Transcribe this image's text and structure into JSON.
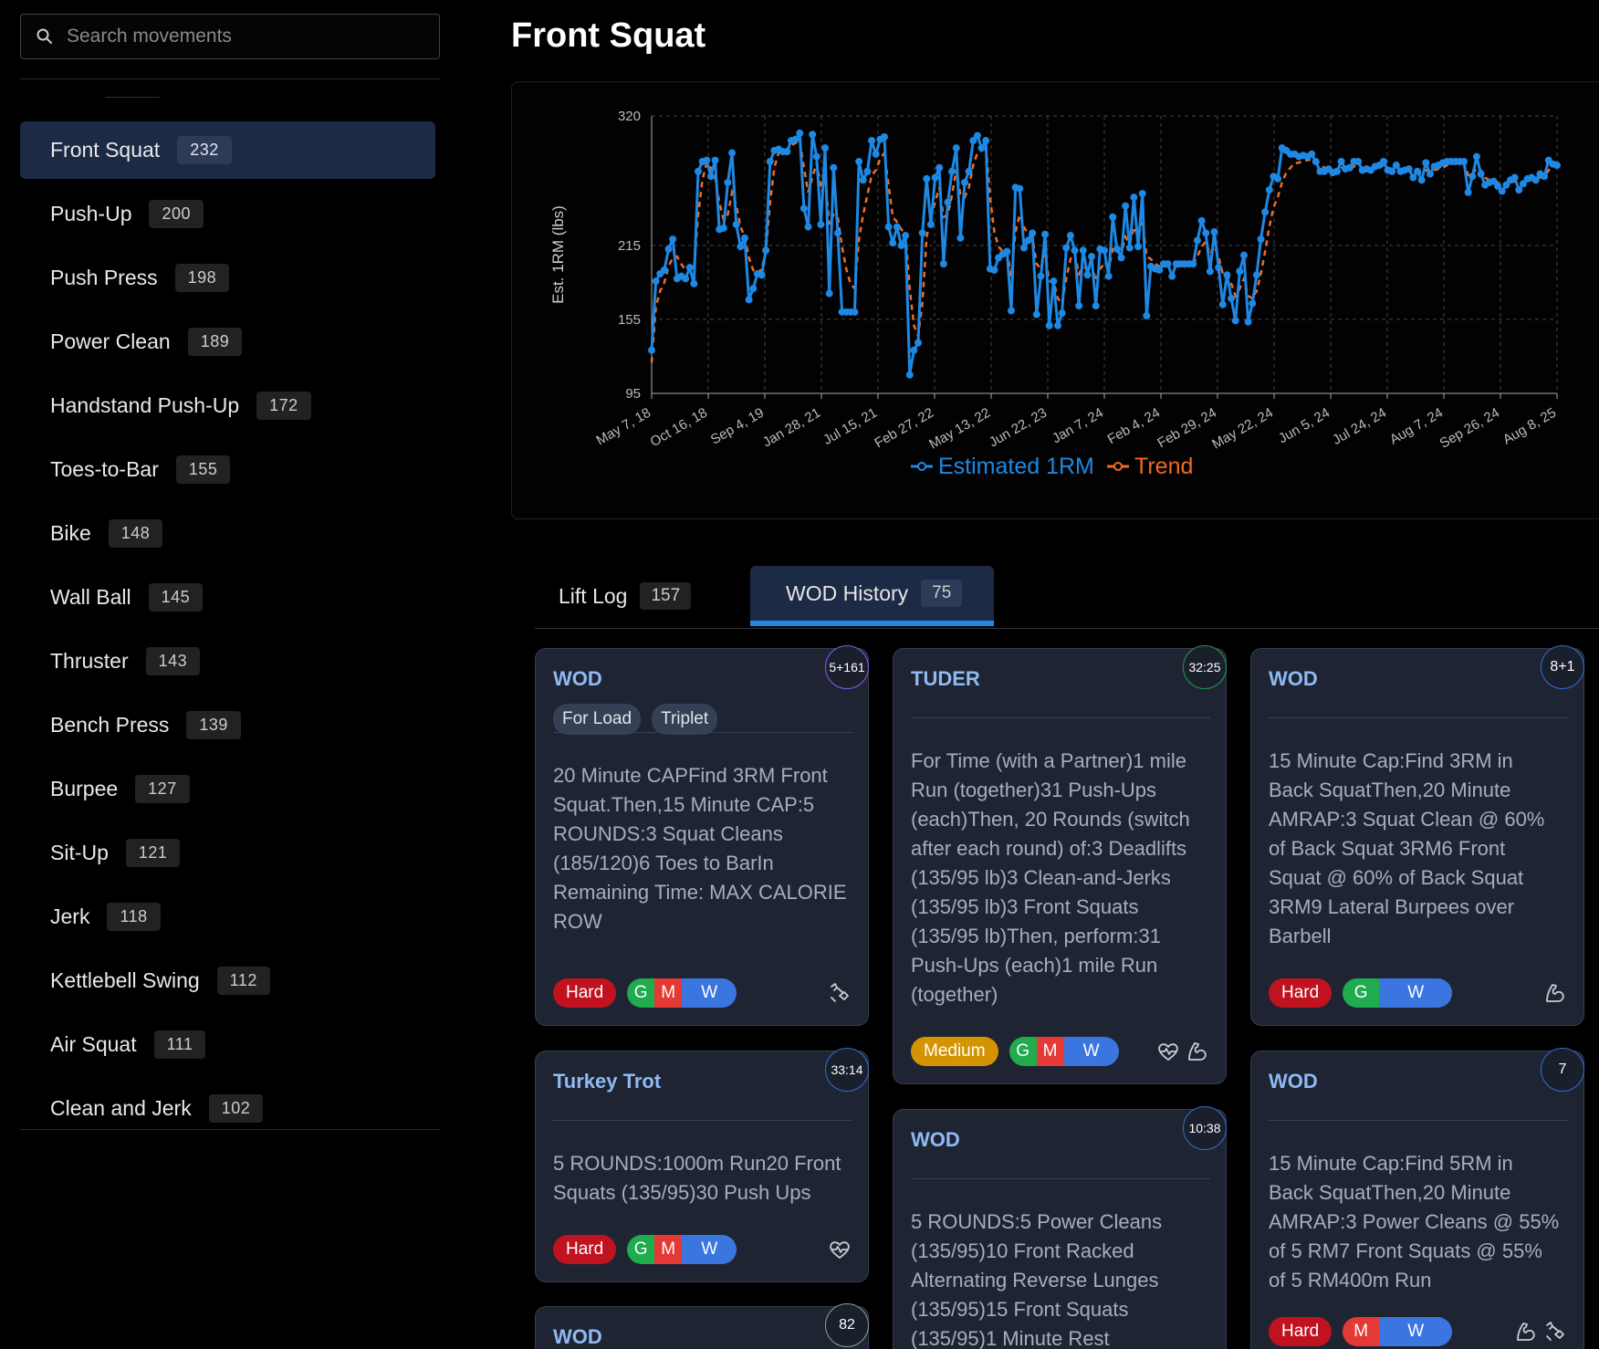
{
  "search": {
    "placeholder": "Search movements"
  },
  "movements": [
    {
      "name": "Front Squat",
      "count": "232",
      "active": true
    },
    {
      "name": "Push-Up",
      "count": "200"
    },
    {
      "name": "Push Press",
      "count": "198"
    },
    {
      "name": "Power Clean",
      "count": "189"
    },
    {
      "name": "Handstand Push-Up",
      "count": "172"
    },
    {
      "name": "Toes-to-Bar",
      "count": "155"
    },
    {
      "name": "Bike",
      "count": "148"
    },
    {
      "name": "Wall Ball",
      "count": "145"
    },
    {
      "name": "Thruster",
      "count": "143"
    },
    {
      "name": "Bench Press",
      "count": "139"
    },
    {
      "name": "Burpee",
      "count": "127"
    },
    {
      "name": "Sit-Up",
      "count": "121"
    },
    {
      "name": "Jerk",
      "count": "118"
    },
    {
      "name": "Kettlebell Swing",
      "count": "112"
    },
    {
      "name": "Air Squat",
      "count": "111"
    },
    {
      "name": "Clean and Jerk",
      "count": "102"
    }
  ],
  "page_title": "Front Squat",
  "colors": {
    "series": "#1e88e5",
    "trend": "#f26b21",
    "active_bg": "#1c2a45",
    "card_bg": "#1f2433",
    "hard": "#c1121f",
    "medium": "#d49400"
  },
  "chart_data": {
    "type": "line",
    "ylabel": "Est. 1RM (lbs)",
    "yticks": [
      95,
      155,
      215,
      320
    ],
    "ylim": [
      95,
      320
    ],
    "xticks": [
      "May 7, 18",
      "Oct 16, 18",
      "Sep 4, 19",
      "Jan 28, 21",
      "Jul 15, 21",
      "Feb 27, 22",
      "May 13, 22",
      "Jun 22, 23",
      "Jan 7, 24",
      "Feb 4, 24",
      "Feb 29, 24",
      "May 22, 24",
      "Jun 5, 24",
      "Jul 24, 24",
      "Aug 7, 24",
      "Sep 26, 24",
      "Aug 8, 25"
    ],
    "grid": true,
    "legend_position": "bottom",
    "series": [
      {
        "name": "Estimated 1RM",
        "values": [
          130,
          186,
          192,
          195,
          212,
          220,
          188,
          190,
          188,
          197,
          184,
          275,
          283,
          284,
          271,
          284,
          228,
          229,
          266,
          290,
          232,
          214,
          221,
          171,
          180,
          192,
          191,
          211,
          283,
          292,
          293,
          291,
          291,
          300,
          301,
          306,
          245,
          230,
          305,
          287,
          232,
          294,
          176,
          278,
          225,
          161,
          161,
          161,
          161,
          283,
          268,
          275,
          300,
          289,
          301,
          303,
          230,
          217,
          230,
          215,
          223,
          110,
          130,
          136,
          225,
          269,
          232,
          270,
          278,
          200,
          250,
          275,
          294,
          221,
          266,
          275,
          300,
          304,
          294,
          300,
          196,
          195,
          205,
          208,
          210,
          162,
          262,
          261,
          213,
          219,
          225,
          159,
          190,
          224,
          150,
          186,
          150,
          160,
          213,
          223,
          211,
          166,
          211,
          191,
          206,
          166,
          212,
          211,
          190,
          238,
          212,
          205,
          247,
          213,
          254,
          214,
          257,
          158,
          198,
          196,
          195,
          200,
          200,
          190,
          200,
          200,
          200,
          200,
          200,
          219,
          235,
          225,
          194,
          226,
          197,
          167,
          191,
          172,
          154,
          194,
          207,
          153,
          168,
          191,
          220,
          242,
          260,
          271,
          269,
          294,
          292,
          289,
          289,
          287,
          288,
          287,
          289,
          283,
          275,
          275,
          277,
          274,
          275,
          283,
          277,
          278,
          283,
          283,
          276,
          277,
          276,
          279,
          280,
          283,
          276,
          275,
          280,
          275,
          276,
          277,
          270,
          275,
          268,
          282,
          273,
          279,
          280,
          282,
          283,
          283,
          283,
          283,
          283,
          258,
          271,
          287,
          273,
          264,
          266,
          267,
          263,
          259,
          264,
          268,
          270,
          260,
          265,
          269,
          270,
          268,
          273,
          271,
          284,
          281,
          280
        ]
      },
      {
        "name": "Trend",
        "values": [
          120,
          165,
          178,
          185,
          198,
          205,
          206,
          200,
          195,
          198,
          196,
          240,
          268,
          282,
          278,
          270,
          250,
          236,
          240,
          258,
          248,
          230,
          222,
          205,
          195,
          192,
          196,
          210,
          250,
          278,
          290,
          292,
          292,
          296,
          298,
          300,
          278,
          258,
          270,
          282,
          262,
          270,
          232,
          240,
          238,
          214,
          196,
          184,
          180,
          220,
          240,
          256,
          272,
          276,
          285,
          290,
          264,
          238,
          234,
          228,
          224,
          180,
          150,
          142,
          168,
          222,
          238,
          250,
          262,
          238,
          240,
          256,
          276,
          256,
          254,
          262,
          280,
          290,
          292,
          296,
          254,
          226,
          214,
          210,
          210,
          190,
          226,
          240,
          230,
          224,
          222,
          200,
          196,
          208,
          186,
          186,
          172,
          168,
          188,
          204,
          208,
          192,
          198,
          196,
          200,
          186,
          196,
          200,
          196,
          212,
          210,
          208,
          222,
          216,
          230,
          222,
          234,
          206,
          204,
          200,
          198,
          198,
          198,
          196,
          198,
          198,
          198,
          200,
          200,
          206,
          214,
          218,
          208,
          214,
          206,
          192,
          192,
          184,
          174,
          180,
          188,
          174,
          172,
          178,
          192,
          210,
          230,
          246,
          254,
          266,
          274,
          278,
          282,
          282,
          284,
          284,
          285,
          284,
          280,
          278,
          278,
          276,
          276,
          278,
          277,
          277,
          279,
          280,
          278,
          277,
          277,
          278,
          278,
          280,
          278,
          277,
          278,
          277,
          276,
          277,
          275,
          275,
          273,
          276,
          275,
          276,
          277,
          278,
          280,
          281,
          282,
          282,
          282,
          272,
          272,
          278,
          276,
          270,
          268,
          268,
          266,
          264,
          264,
          266,
          267,
          264,
          265,
          267,
          268,
          268,
          270,
          270,
          276,
          278,
          279
        ]
      }
    ]
  },
  "tabs": [
    {
      "label": "Lift Log",
      "count": "157",
      "active": false
    },
    {
      "label": "WOD History",
      "count": "75",
      "active": true
    }
  ],
  "cards": [
    {
      "title": "WOD",
      "score": "5+161",
      "tags": [
        "For Load",
        "Triplet"
      ],
      "body": [
        "20 Minute CAPFind 3RM Front",
        "Squat.Then,15 Minute CAP:5",
        "ROUNDS:3 Squat Cleans",
        "(185/120)6 Toes to BarIn",
        "Remaining Time: MAX CALORIE",
        "ROW"
      ],
      "difficulty": "Hard",
      "gmw": [
        "G",
        "M",
        "W"
      ],
      "icons": [
        "stretch-icon"
      ]
    },
    {
      "title": "Turkey Trot",
      "score": "33:14",
      "tags": [],
      "body": [
        "5 ROUNDS:1000m Run20 Front",
        "Squats (135/95)30 Push Ups"
      ],
      "difficulty": "Hard",
      "gmw": [
        "G",
        "M",
        "W"
      ],
      "icons": [
        "heartbeat-icon"
      ]
    },
    {
      "title": "WOD",
      "score": "82",
      "tags": [],
      "body": [],
      "difficulty": "",
      "gmw": [],
      "icons": []
    },
    {
      "title": "TUDER",
      "score": "32:25",
      "tags": [],
      "body": [
        "For Time (with a Partner)1 mile",
        "Run (together)31 Push-Ups",
        "(each)Then, 20 Rounds (switch",
        "after each round) of:3 Deadlifts",
        "(135/95 lb)3 Clean-and-Jerks",
        "(135/95 lb)3 Front Squats",
        "(135/95 lb)Then, perform:31",
        "Push-Ups (each)1 mile Run",
        "(together)"
      ],
      "difficulty": "Medium",
      "gmw": [
        "G",
        "M",
        "W"
      ],
      "icons": [
        "heartbeat-icon",
        "bicep-icon"
      ]
    },
    {
      "title": "WOD",
      "score": "10:38",
      "tags": [],
      "body": [
        "5 ROUNDS:5 Power Cleans",
        "(135/95)10 Front Racked",
        "Alternating Reverse Lunges",
        "(135/95)15 Front Squats",
        "(135/95)1 Minute Rest"
      ],
      "difficulty": "",
      "gmw": [],
      "icons": []
    },
    {
      "title": "WOD",
      "score": "8+1",
      "tags": [],
      "body": [
        "15 Minute Cap:Find 3RM in",
        "Back SquatThen,20 Minute",
        "AMRAP:3 Squat Clean @ 60%",
        "of Back Squat 3RM6 Front",
        "Squat @ 60% of Back Squat",
        "3RM9 Lateral Burpees over",
        "Barbell"
      ],
      "difficulty": "Hard",
      "gmw": [
        "G",
        "W"
      ],
      "icons": [
        "bicep-icon"
      ]
    },
    {
      "title": "WOD",
      "score": "7",
      "tags": [],
      "body": [
        "15 Minute Cap:Find 5RM in",
        "Back SquatThen,20 Minute",
        "AMRAP:3 Power Cleans @ 55%",
        "of 5 RM7 Front Squats @ 55%",
        "of 5 RM400m Run"
      ],
      "difficulty": "Hard",
      "gmw": [
        "M",
        "W"
      ],
      "icons": [
        "bicep-icon",
        "stretch-icon"
      ]
    }
  ]
}
